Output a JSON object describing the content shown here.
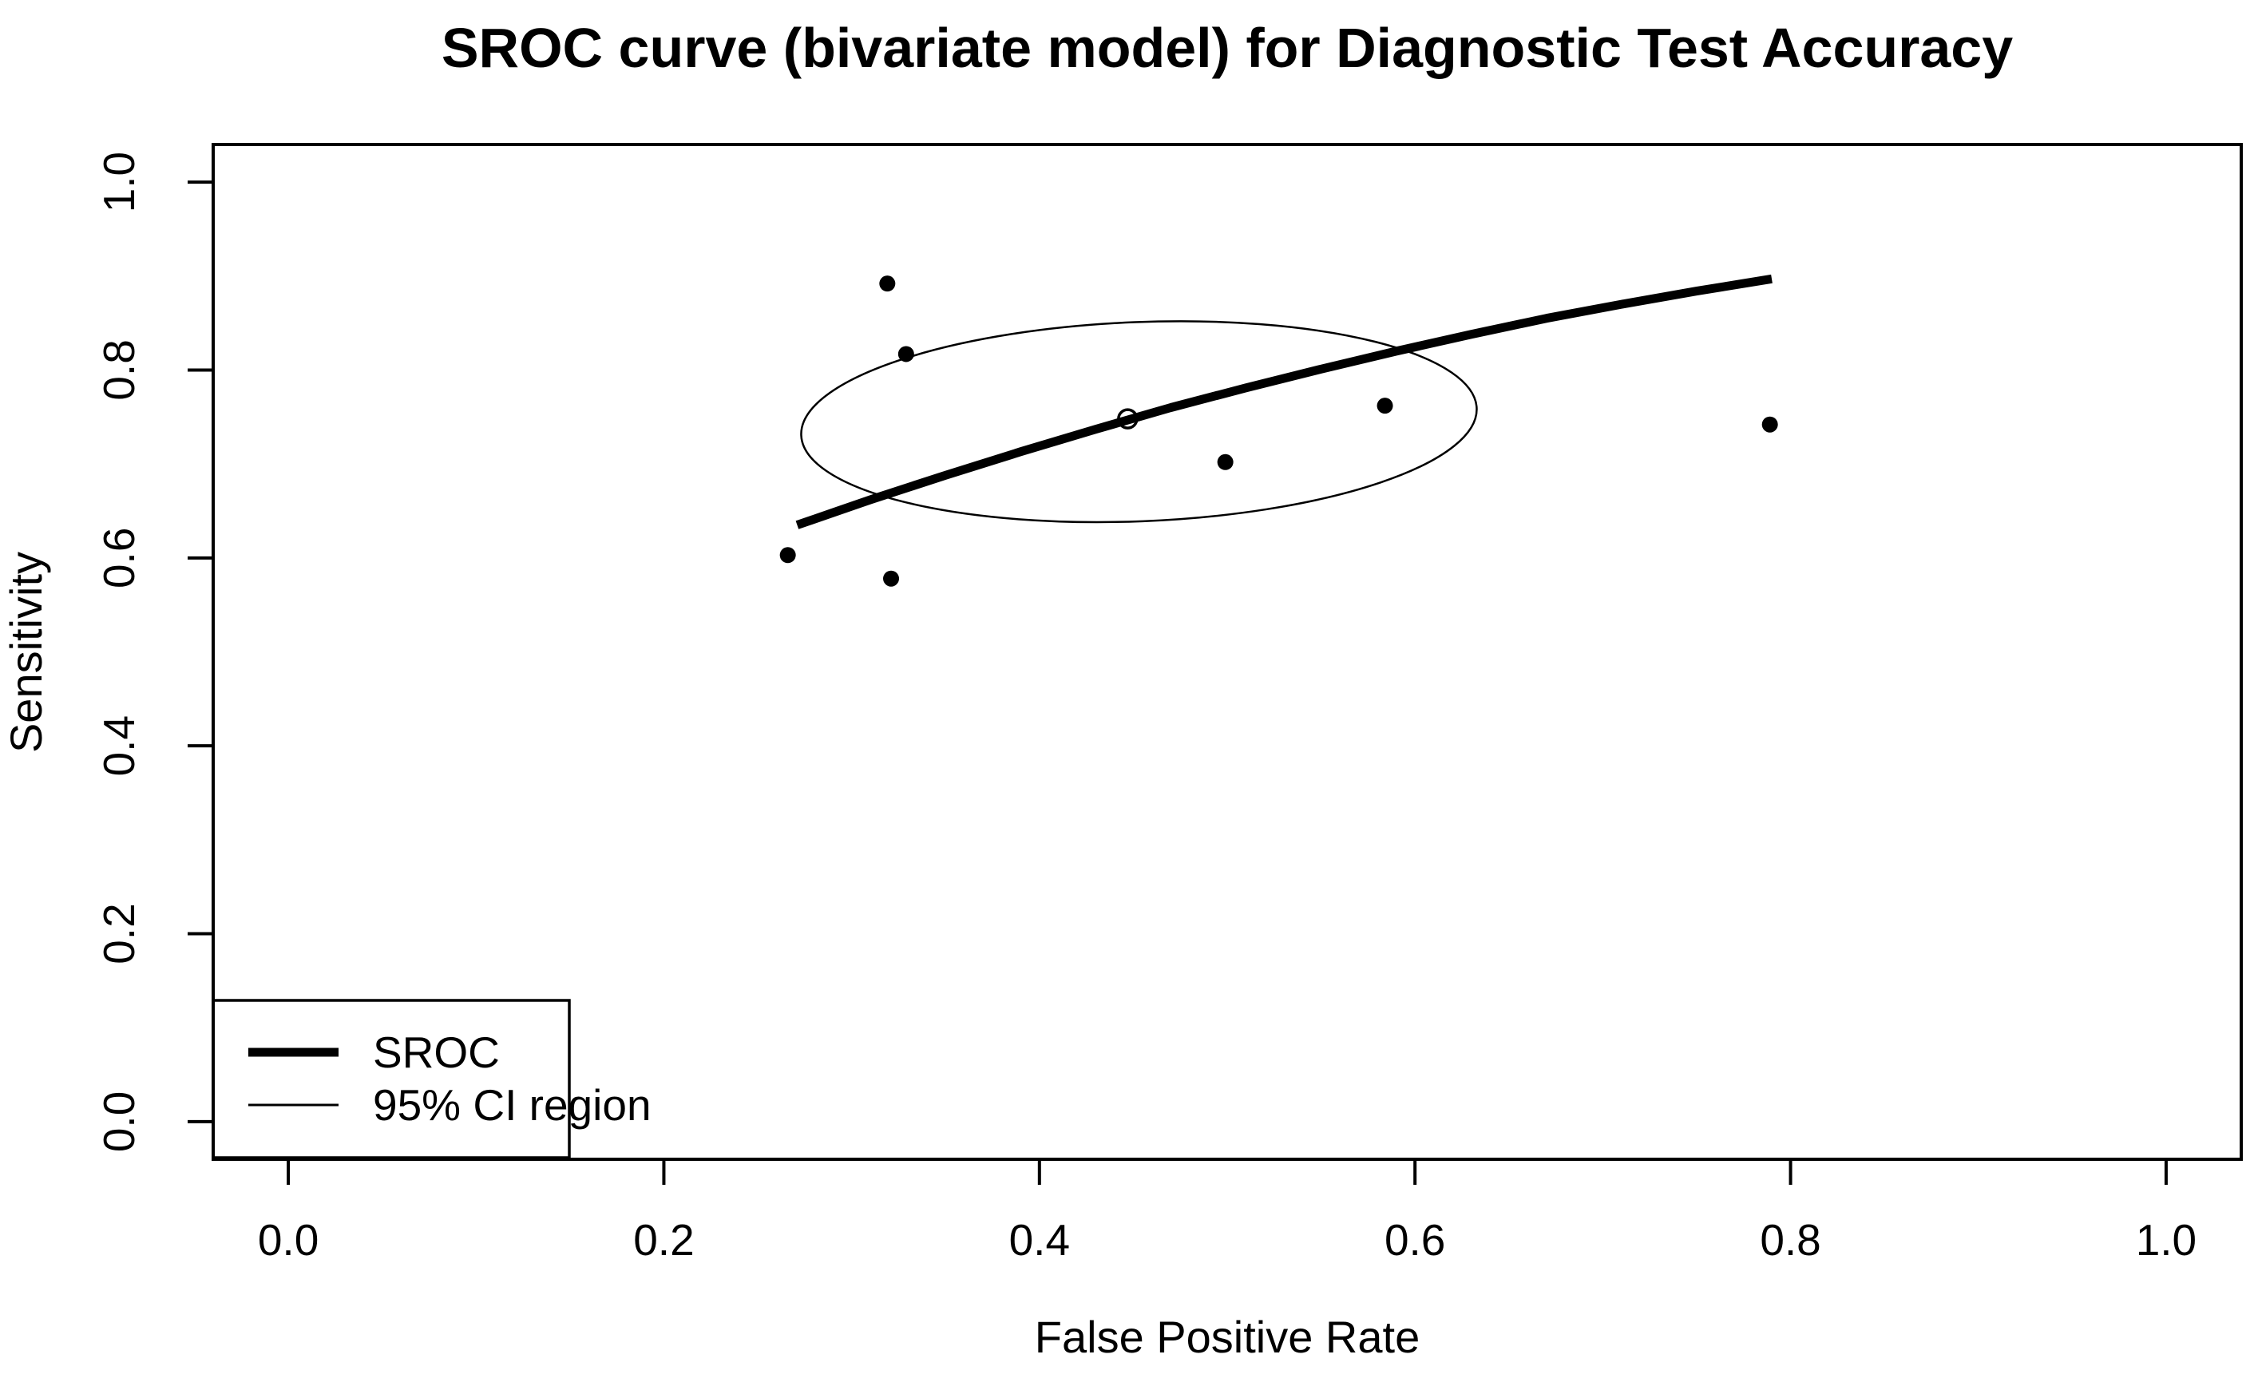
{
  "title": "SROC curve (bivariate model) for Diagnostic Test Accuracy",
  "axes": {
    "x": {
      "label": "False Positive Rate",
      "tick_values": [
        0.0,
        0.2,
        0.4,
        0.6,
        0.8,
        1.0
      ],
      "tick_labels": [
        "0.0",
        "0.2",
        "0.4",
        "0.6",
        "0.8",
        "1.0"
      ],
      "range": [
        0,
        1
      ]
    },
    "y": {
      "label": "Sensitivity",
      "tick_values": [
        0.0,
        0.2,
        0.4,
        0.6,
        0.8,
        1.0
      ],
      "tick_labels": [
        "0.0",
        "0.2",
        "0.4",
        "0.6",
        "0.8",
        "1.0"
      ],
      "range": [
        0,
        1
      ]
    }
  },
  "legend": {
    "items": [
      {
        "label": "SROC",
        "line_style": "thick"
      },
      {
        "label": "95% CI region",
        "line_style": "thin"
      }
    ],
    "position": "bottom-left"
  },
  "colors": {
    "foreground": "#000000",
    "background": "#ffffff"
  },
  "chart_data": {
    "type": "line",
    "title": "SROC curve (bivariate model) for Diagnostic Test Accuracy",
    "xlabel": "False Positive Rate",
    "ylabel": "Sensitivity",
    "xlim": [
      0,
      1
    ],
    "ylim": [
      0,
      1
    ],
    "axis_expansion": 0.04,
    "grid": false,
    "legend_position": "bottom-left",
    "series": [
      {
        "name": "SROC",
        "type": "line",
        "stroke": "thick",
        "points": [
          [
            0.271,
            0.635
          ],
          [
            0.31,
            0.662
          ],
          [
            0.35,
            0.688
          ],
          [
            0.39,
            0.713
          ],
          [
            0.43,
            0.737
          ],
          [
            0.47,
            0.76
          ],
          [
            0.51,
            0.781
          ],
          [
            0.55,
            0.801
          ],
          [
            0.59,
            0.82
          ],
          [
            0.63,
            0.838
          ],
          [
            0.67,
            0.855
          ],
          [
            0.71,
            0.87
          ],
          [
            0.75,
            0.884
          ],
          [
            0.79,
            0.897
          ]
        ]
      },
      {
        "name": "study points",
        "type": "scatter",
        "marker": "filled-circle",
        "points": [
          [
            0.266,
            0.603
          ],
          [
            0.321,
            0.578
          ],
          [
            0.319,
            0.892
          ],
          [
            0.329,
            0.817
          ],
          [
            0.499,
            0.702
          ],
          [
            0.584,
            0.762
          ],
          [
            0.789,
            0.742
          ]
        ]
      },
      {
        "name": "summary point",
        "type": "scatter",
        "marker": "open-circle",
        "points": [
          [
            0.447,
            0.748
          ]
        ]
      },
      {
        "name": "95% CI region",
        "type": "ellipse",
        "center": [
          0.453,
          0.745
        ],
        "rx": 0.18,
        "ry": 0.106,
        "rotation_deg": -2.3
      }
    ]
  }
}
